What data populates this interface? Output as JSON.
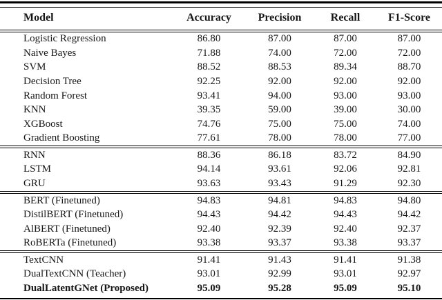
{
  "chart_data": {
    "type": "table",
    "columns": [
      "Model",
      "Accuracy",
      "Precision",
      "Recall",
      "F1-Score"
    ],
    "groups": [
      {
        "rows": [
          {
            "model": "Logistic Regression",
            "values": [
              "86.80",
              "87.00",
              "87.00",
              "87.00"
            ]
          },
          {
            "model": "Naive Bayes",
            "values": [
              "71.88",
              "74.00",
              "72.00",
              "72.00"
            ]
          },
          {
            "model": "SVM",
            "values": [
              "88.52",
              "88.53",
              "89.34",
              "88.70"
            ]
          },
          {
            "model": "Decision Tree",
            "values": [
              "92.25",
              "92.00",
              "92.00",
              "92.00"
            ]
          },
          {
            "model": "Random Forest",
            "values": [
              "93.41",
              "94.00",
              "93.00",
              "93.00"
            ]
          },
          {
            "model": "KNN",
            "values": [
              "39.35",
              "59.00",
              "39.00",
              "30.00"
            ]
          },
          {
            "model": "XGBoost",
            "values": [
              "74.76",
              "75.00",
              "75.00",
              "74.00"
            ]
          },
          {
            "model": "Gradient Boosting",
            "values": [
              "77.61",
              "78.00",
              "78.00",
              "77.00"
            ]
          }
        ]
      },
      {
        "rows": [
          {
            "model": "RNN",
            "values": [
              "88.36",
              "86.18",
              "83.72",
              "84.90"
            ]
          },
          {
            "model": "LSTM",
            "values": [
              "94.14",
              "93.61",
              "92.06",
              "92.81"
            ]
          },
          {
            "model": "GRU",
            "values": [
              "93.63",
              "93.43",
              "91.29",
              "92.30"
            ]
          }
        ]
      },
      {
        "rows": [
          {
            "model": "BERT (Finetuned)",
            "values": [
              "94.83",
              "94.81",
              "94.83",
              "94.80"
            ]
          },
          {
            "model": "DistilBERT (Finetuned)",
            "values": [
              "94.43",
              "94.42",
              "94.43",
              "94.42"
            ]
          },
          {
            "model": "AlBERT (Finetuned)",
            "values": [
              "92.40",
              "92.39",
              "92.40",
              "92.37"
            ]
          },
          {
            "model": "RoBERTa (Finetuned)",
            "values": [
              "93.38",
              "93.37",
              "93.38",
              "93.37"
            ]
          }
        ]
      },
      {
        "rows": [
          {
            "model": "TextCNN",
            "values": [
              "91.41",
              "91.43",
              "91.41",
              "91.38"
            ]
          },
          {
            "model": "DualTextCNN (Teacher)",
            "values": [
              "93.01",
              "92.99",
              "93.01",
              "92.97"
            ]
          },
          {
            "model": "DualLatentGNet (Proposed)",
            "values": [
              "95.09",
              "95.28",
              "95.09",
              "95.10"
            ],
            "bold": true
          }
        ]
      }
    ]
  },
  "colors": {
    "rule": "#000000",
    "text": "#161616",
    "background": "#ffffff"
  }
}
